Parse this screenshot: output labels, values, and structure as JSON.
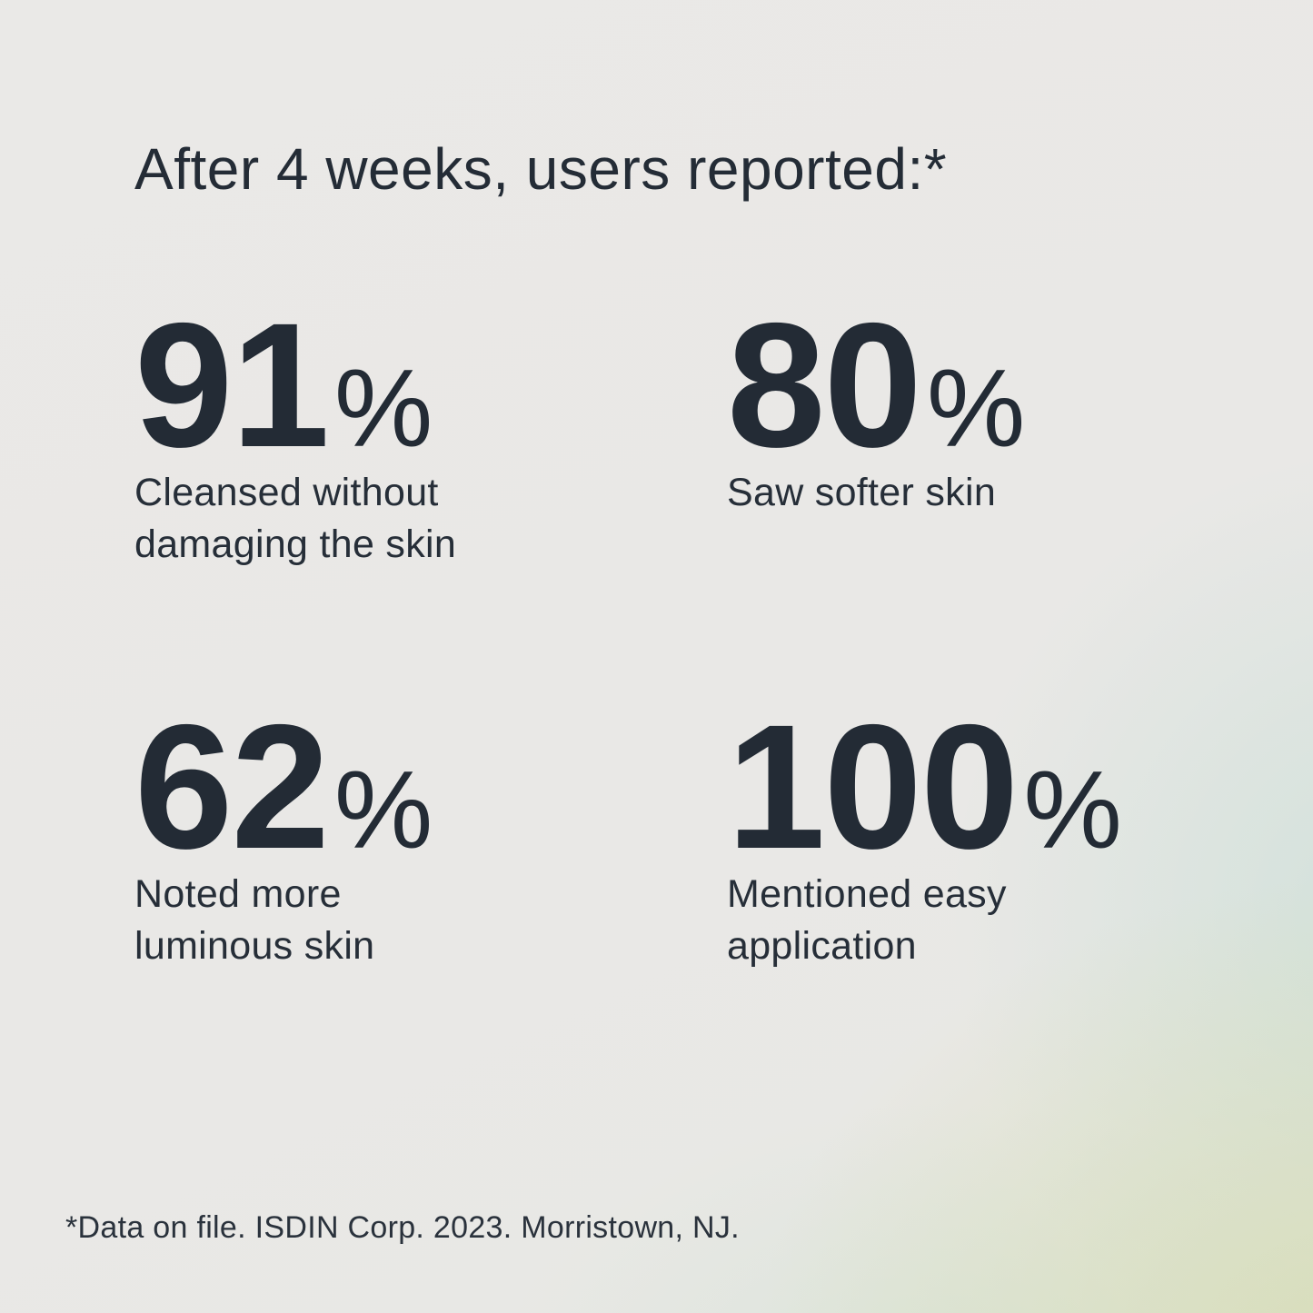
{
  "headline": "After 4 weeks, users reported:*",
  "stats": [
    {
      "value": "91",
      "unit": "%",
      "label": "Cleansed without\ndamaging the skin"
    },
    {
      "value": "80",
      "unit": "%",
      "label": "Saw softer skin"
    },
    {
      "value": "62",
      "unit": "%",
      "label": "Noted more\nluminous skin"
    },
    {
      "value": "100",
      "unit": "%",
      "label": "Mentioned easy\napplication"
    }
  ],
  "footnote": "*Data on file. ISDIN Corp. 2023. Morristown, NJ.",
  "colors": {
    "text": "#232b35",
    "background_base": "#e9e8e6",
    "background_tint_teal": "#cfe3db",
    "background_tint_green": "#d9dfc0"
  },
  "chart_data": {
    "type": "bar",
    "title": "After 4 weeks, users reported:*",
    "categories": [
      "Cleansed without damaging the skin",
      "Saw softer skin",
      "Noted more luminous skin",
      "Mentioned easy application"
    ],
    "values": [
      91,
      80,
      62,
      100
    ],
    "unit": "%",
    "source_note": "*Data on file. ISDIN Corp. 2023. Morristown, NJ."
  }
}
